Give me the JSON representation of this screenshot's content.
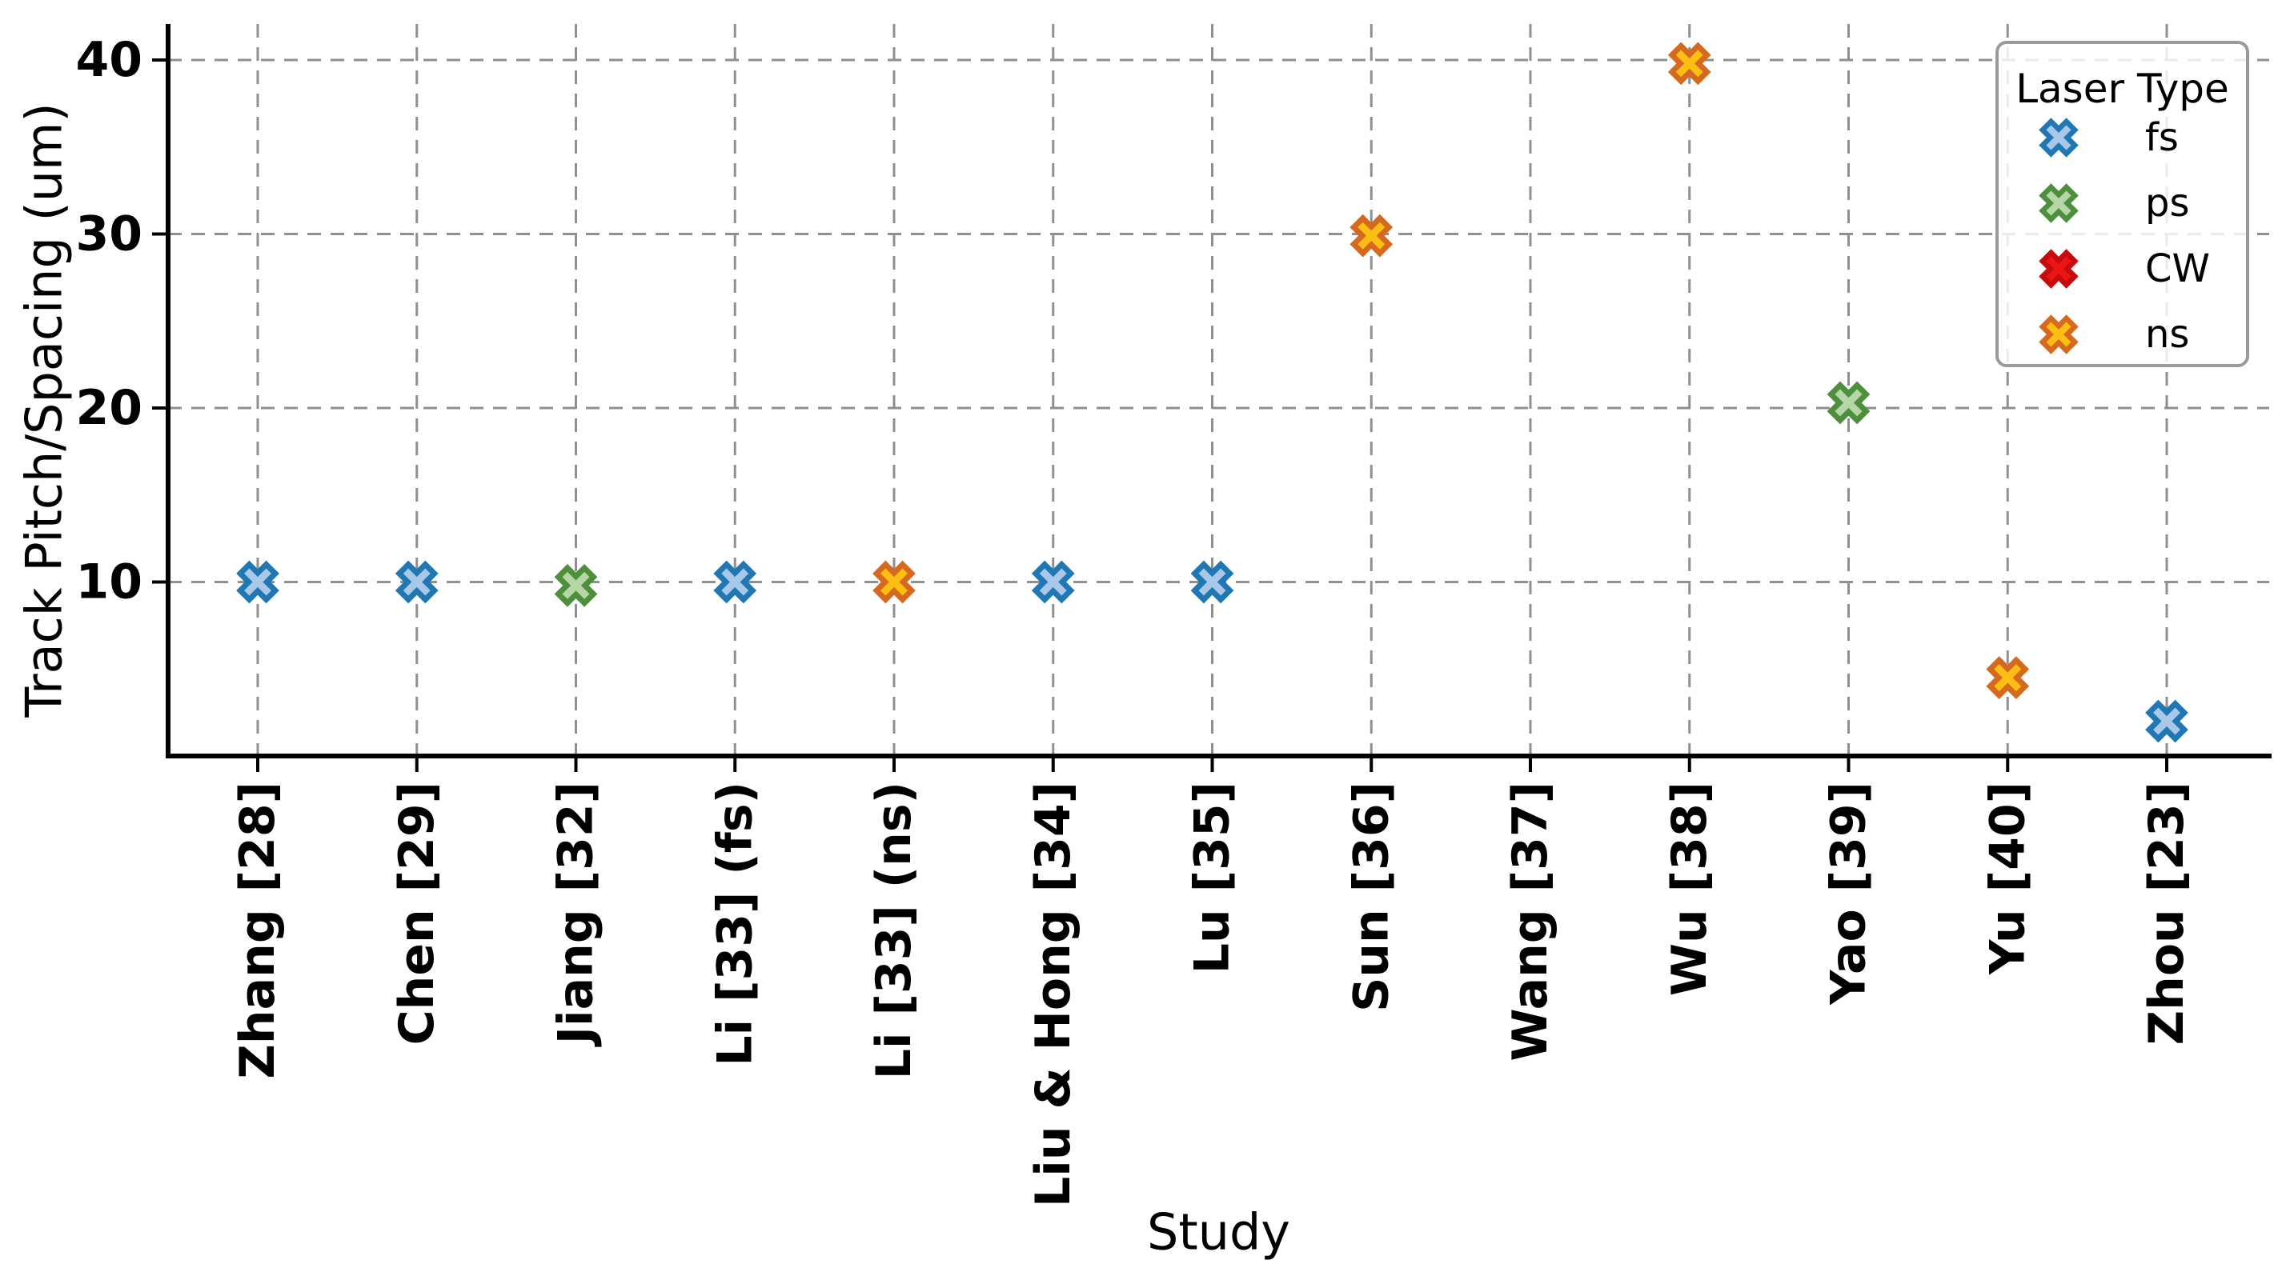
{
  "figure": {
    "background": "#ffffff"
  },
  "chart_data": {
    "type": "scatter",
    "title": "",
    "xlabel": "Study",
    "ylabel": "Track Pitch/Spacing (um)",
    "ylim": [
      0,
      42
    ],
    "yticks": [
      10,
      20,
      30,
      40
    ],
    "grid": true,
    "grid_style": "dashed",
    "marker": "X",
    "legend": {
      "title": "Laser Type",
      "position": "upper right",
      "entries": [
        {
          "label": "fs",
          "edge": "#1f77b4",
          "fill": "#a9c8e8"
        },
        {
          "label": "ps",
          "edge": "#4e8f3d",
          "fill": "#b5d7a8"
        },
        {
          "label": "CW",
          "edge": "#c50b0b",
          "fill": "#ec1515"
        },
        {
          "label": "ns",
          "edge": "#d4691f",
          "fill": "#fcbe13"
        }
      ]
    },
    "categories": [
      "Zhang [28]",
      "Chen [29]",
      "Jiang [32]",
      "Li [33] (fs)",
      "Li [33] (ns)",
      "Liu & Hong [34]",
      "Lu [35]",
      "Sun [36]",
      "Wang [37]",
      "Wu [38]",
      "Yao [39]",
      "Yu [40]",
      "Zhou [23]"
    ],
    "points": [
      {
        "study": "Zhang [28]",
        "value": 10,
        "laser": "fs"
      },
      {
        "study": "Chen [29]",
        "value": 10,
        "laser": "fs"
      },
      {
        "study": "Jiang [32]",
        "value": 9.8,
        "laser": "ps"
      },
      {
        "study": "Li [33] (fs)",
        "value": 10,
        "laser": "fs"
      },
      {
        "study": "Li [33] (ns)",
        "value": 10,
        "laser": "ns"
      },
      {
        "study": "Liu & Hong [34]",
        "value": 10,
        "laser": "fs"
      },
      {
        "study": "Lu [35]",
        "value": 10,
        "laser": "fs"
      },
      {
        "study": "Sun [36]",
        "value": 29.9,
        "laser": "ns"
      },
      {
        "study": "Wang [37]",
        "value": null,
        "laser": null
      },
      {
        "study": "Wu [38]",
        "value": 39.8,
        "laser": "ns"
      },
      {
        "study": "Yao [39]",
        "value": 20.3,
        "laser": "ps"
      },
      {
        "study": "Yu [40]",
        "value": 4.5,
        "laser": "ns"
      },
      {
        "study": "Zhou [23]",
        "value": 2,
        "laser": "fs"
      }
    ]
  }
}
